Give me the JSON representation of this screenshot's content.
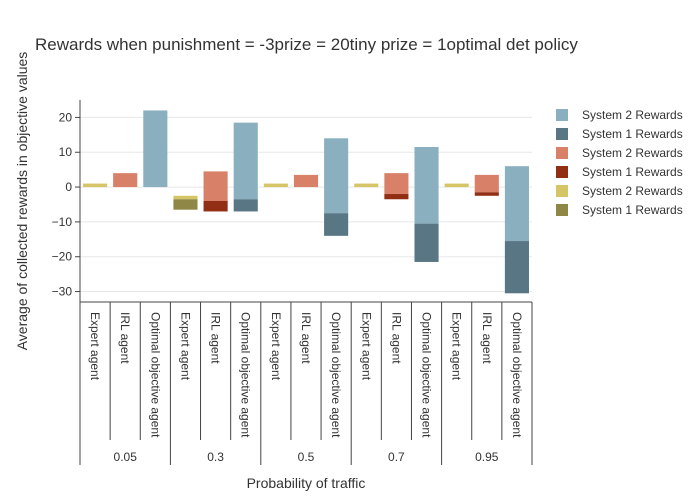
{
  "chart_data": {
    "type": "bar",
    "title": "Rewards when punishment = -3prize = 20tiny prize = 1optimal det policy",
    "xlabel": "Probability of traffic",
    "ylabel": "Average of collected rewards in objective values",
    "ylim": [
      -33,
      25
    ],
    "yticks": [
      20,
      10,
      0,
      -10,
      -20,
      -30
    ],
    "groups": [
      "0.05",
      "0.3",
      "0.5",
      "0.7",
      "0.95"
    ],
    "agents": [
      "Expert agent",
      "IRL agent",
      "Optimal objective agent"
    ],
    "legend_position": "right",
    "series": [
      {
        "name": "System 2 Rewards",
        "color": "#8aafbf",
        "agent": "Optimal objective agent",
        "bars": [
          [
            0,
            22
          ],
          [
            -3.5,
            18.5
          ],
          [
            -7.5,
            14
          ],
          [
            -10.5,
            11.5
          ],
          [
            -15.5,
            6
          ]
        ]
      },
      {
        "name": "System 1 Rewards",
        "color": "#587684",
        "agent": "Optimal objective agent",
        "bars": [
          [
            0,
            0
          ],
          [
            -7,
            -3.5
          ],
          [
            -14,
            -7.5
          ],
          [
            -21.5,
            -10.5
          ],
          [
            -30.5,
            -15.5
          ]
        ]
      },
      {
        "name": "System 2 Rewards",
        "color": "#d98068",
        "agent": "IRL agent",
        "bars": [
          [
            0,
            4
          ],
          [
            -4,
            4.5
          ],
          [
            0,
            3.5
          ],
          [
            -2,
            4
          ],
          [
            -1.5,
            3.5
          ]
        ]
      },
      {
        "name": "System 1 Rewards",
        "color": "#912e14",
        "agent": "IRL agent",
        "bars": [
          [
            0,
            0
          ],
          [
            -7,
            -4
          ],
          [
            0,
            0
          ],
          [
            -3.5,
            -2
          ],
          [
            -2.5,
            -1.5
          ]
        ]
      },
      {
        "name": "System 2 Rewards",
        "color": "#d6c567",
        "agent": "Expert agent",
        "bars": [
          [
            0,
            1
          ],
          [
            -3.5,
            -2.5
          ],
          [
            0,
            1
          ],
          [
            0,
            1
          ],
          [
            0,
            1
          ]
        ]
      },
      {
        "name": "System 1 Rewards",
        "color": "#8f8746",
        "agent": "Expert agent",
        "bars": [
          [
            0,
            0
          ],
          [
            -6.5,
            -3.5
          ],
          [
            0,
            0
          ],
          [
            0,
            0
          ],
          [
            0,
            0
          ]
        ]
      }
    ]
  }
}
